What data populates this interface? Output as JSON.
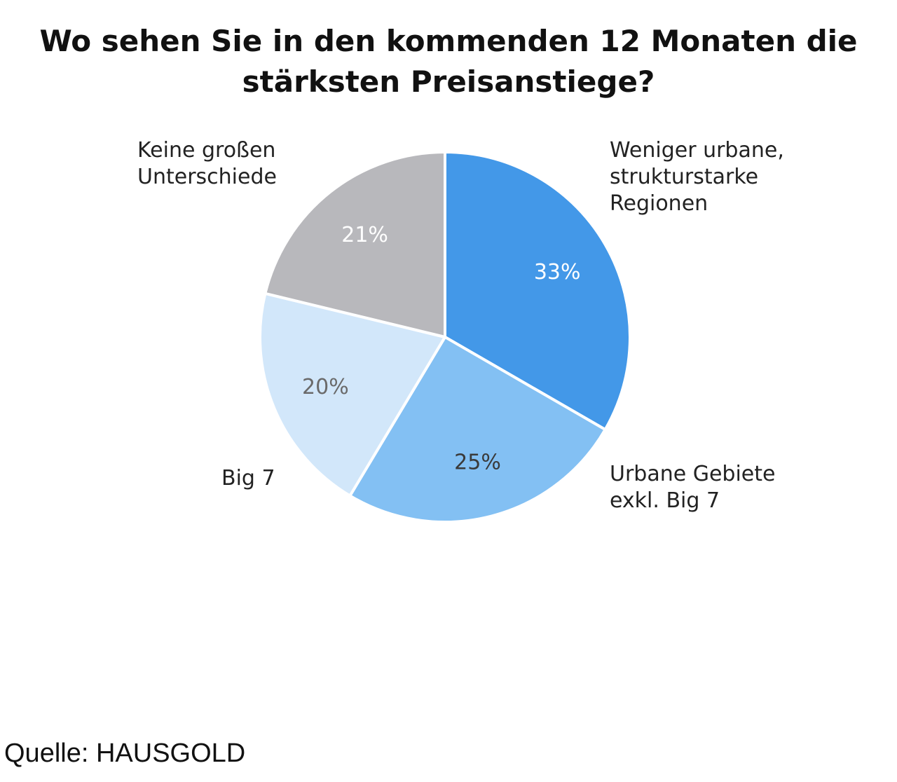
{
  "chart_data": {
    "type": "pie",
    "title_lines": [
      "Wo sehen Sie in den kommenden 12 Monaten die",
      "stärksten Preisanstiege?"
    ],
    "slices": [
      {
        "label_lines": [
          "Weniger urbane,",
          "strukturstarke",
          "Regionen"
        ],
        "value": 33,
        "value_label": "33%",
        "color": "#4398e8",
        "value_label_color": "#ffffff"
      },
      {
        "label_lines": [
          "Urbane Gebiete",
          "exkl. Big 7"
        ],
        "value": 25,
        "value_label": "25%",
        "color": "#83c0f3",
        "value_label_color": "#3a3a3a"
      },
      {
        "label_lines": [
          "Big 7"
        ],
        "value": 20,
        "value_label": "20%",
        "color": "#d2e7fa",
        "value_label_color": "#6a6a6a"
      },
      {
        "label_lines": [
          "Keine großen",
          "Unterschiede"
        ],
        "value": 21,
        "value_label": "21%",
        "color": "#b8b8bc",
        "value_label_color": "#ffffff"
      }
    ],
    "start_angle": "12 o'clock",
    "direction": "clockwise",
    "legend": "none (labels beside slices)"
  },
  "source": "Quelle: HAUSGOLD"
}
